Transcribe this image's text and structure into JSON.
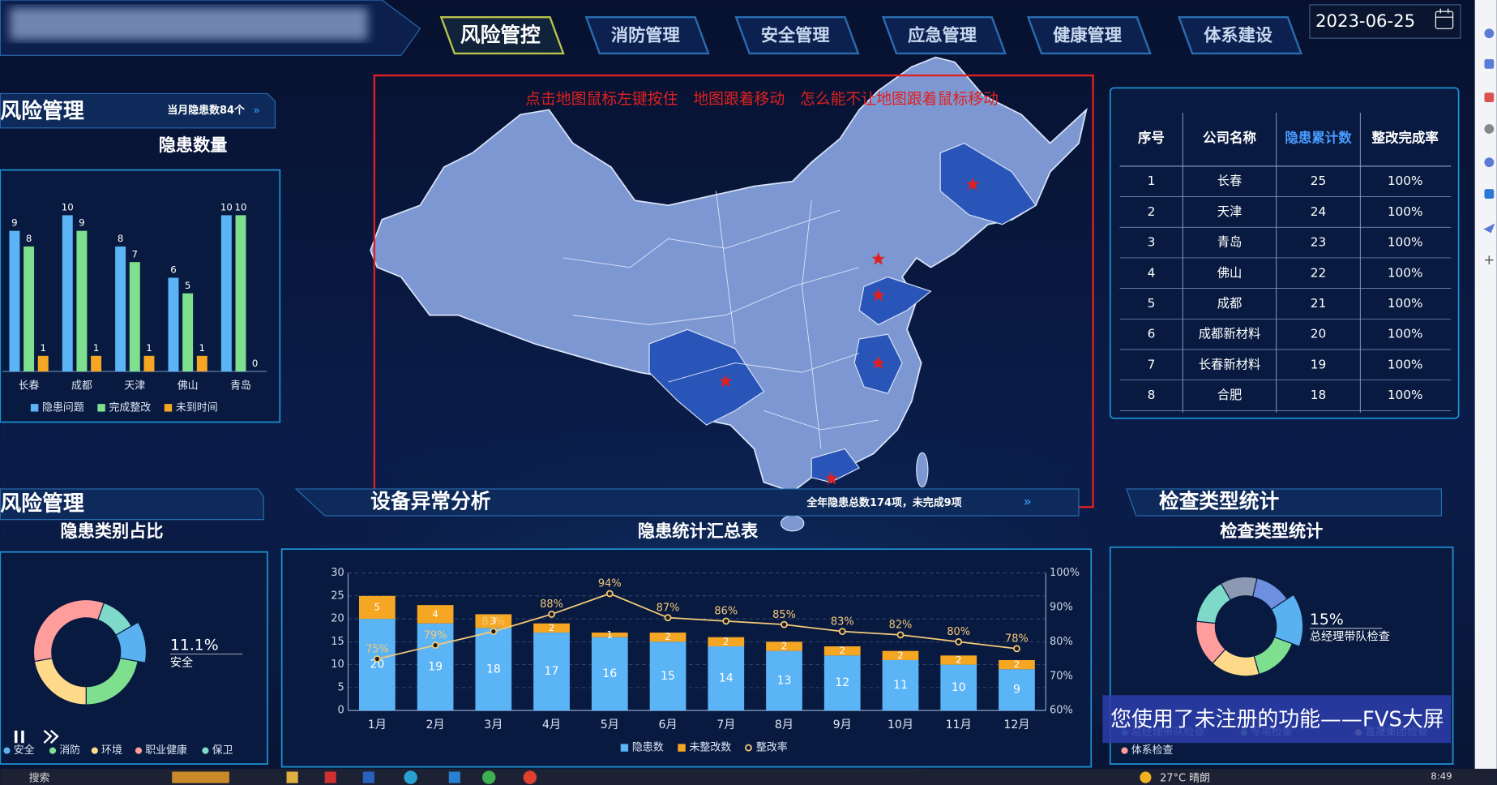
{
  "header": {
    "nav": [
      "风险管控",
      "消防管理",
      "安全管理",
      "应急管理",
      "健康管理",
      "体系建设"
    ],
    "date": "2023-06-25"
  },
  "panels": {
    "risk_top": {
      "title": "风险管理",
      "badge": "当月隐患数84个"
    },
    "risk_bottom": {
      "title": "风险管理"
    },
    "equipment": {
      "title": "设备异常分析"
    },
    "inspection": {
      "title": "检查类型统计"
    }
  },
  "map": {
    "note": "点击地图鼠标左键按住　地图跟着移动　怎么能不让地图跟着鼠标移动",
    "summary": "全年隐患总数174项，未完成9项"
  },
  "table": {
    "headers": [
      "序号",
      "公司名称",
      "隐患累计数",
      "整改完成率"
    ],
    "rows": [
      [
        1,
        "长春",
        25,
        "100%"
      ],
      [
        2,
        "天津",
        24,
        "100%"
      ],
      [
        3,
        "青岛",
        23,
        "100%"
      ],
      [
        4,
        "佛山",
        22,
        "100%"
      ],
      [
        5,
        "成都",
        21,
        "100%"
      ],
      [
        6,
        "成都新材料",
        20,
        "100%"
      ],
      [
        7,
        "长春新材料",
        19,
        "100%"
      ],
      [
        8,
        "合肥",
        18,
        "100%"
      ]
    ]
  },
  "watermark": "您使用了未注册的功能——FVS大屏",
  "taskbar": {
    "search": "搜索",
    "weather": "27°C 晴朗",
    "time": "8:49"
  },
  "chart_data": [
    {
      "type": "bar",
      "title": "隐患数量",
      "categories": [
        "长春",
        "成都",
        "天津",
        "佛山",
        "青岛"
      ],
      "ylim": [
        0,
        11
      ],
      "legend": "bottom",
      "series": [
        {
          "name": "隐患问题",
          "color": "#5ab4f5",
          "values": [
            9,
            10,
            8,
            6,
            10
          ]
        },
        {
          "name": "完成整改",
          "color": "#7ee08f",
          "values": [
            8,
            9,
            7,
            5,
            10
          ]
        },
        {
          "name": "未到时间",
          "color": "#f5a623",
          "values": [
            1,
            1,
            1,
            1,
            0
          ]
        }
      ]
    },
    {
      "type": "pie",
      "title": "隐患类别占比",
      "categories": [
        "安全",
        "消防",
        "环境",
        "职业健康",
        "保卫"
      ],
      "values": [
        11.1,
        22.2,
        22.2,
        33.3,
        11.1
      ],
      "value_labels": [
        "11.1%",
        null,
        null,
        null,
        null
      ],
      "colors": [
        "#5ab1ef",
        "#7ee08f",
        "#ffd98a",
        "#ff9c9c",
        "#7fd9c9"
      ],
      "legend": "bottom"
    },
    {
      "type": "combo",
      "title": "隐患统计汇总表",
      "categories": [
        "1月",
        "2月",
        "3月",
        "4月",
        "5月",
        "6月",
        "7月",
        "8月",
        "9月",
        "10月",
        "11月",
        "12月"
      ],
      "ylim": [
        0,
        30
      ],
      "yticks": [
        0,
        5,
        10,
        15,
        20,
        25,
        30
      ],
      "y2lim": [
        60,
        100
      ],
      "y2ticks": [
        {
          "value": 60,
          "label": "60%"
        },
        {
          "value": 70,
          "label": "70%"
        },
        {
          "value": 80,
          "label": "80%"
        },
        {
          "value": 90,
          "label": "90%"
        },
        {
          "value": 100,
          "label": "100%"
        }
      ],
      "grid": true,
      "legend": "bottom",
      "series": [
        {
          "name": "隐患数",
          "color": "#5ab4f5",
          "values": [
            20,
            19,
            18,
            17,
            16,
            15,
            14,
            13,
            12,
            11,
            10,
            9
          ]
        },
        {
          "name": "未整改数",
          "color": "#f5a623",
          "values": [
            5,
            4,
            3,
            2,
            1,
            2,
            2,
            2,
            2,
            2,
            2,
            2
          ]
        },
        {
          "name": "整改率",
          "color": "#f5c97a",
          "axis": "y2",
          "values": [
            75,
            79,
            83,
            88,
            94,
            87,
            86,
            85,
            83,
            82,
            80,
            78
          ],
          "value_labels": [
            "75%",
            "79%",
            "83%",
            "88%",
            "94%",
            "87%",
            "86%",
            "85%",
            "83%",
            "82%",
            "80%",
            "78%"
          ]
        }
      ]
    },
    {
      "type": "pie",
      "title": "检查类型统计",
      "categories": [
        null,
        null,
        "总经理带队检查",
        "专项检查",
        "富晟集团检查",
        "体系检查",
        "外部检查"
      ],
      "values": [
        12,
        12,
        15,
        15,
        16,
        15,
        15
      ],
      "value_labels": [
        null,
        null,
        "15%",
        null,
        null,
        null,
        null
      ],
      "colors": [
        "#8d98b3",
        "#6e8fe0",
        "#5ab1ef",
        "#7ee08f",
        "#ffd98a",
        "#ff9c9c",
        "#7fd9c9"
      ],
      "legend": "bottom"
    }
  ]
}
